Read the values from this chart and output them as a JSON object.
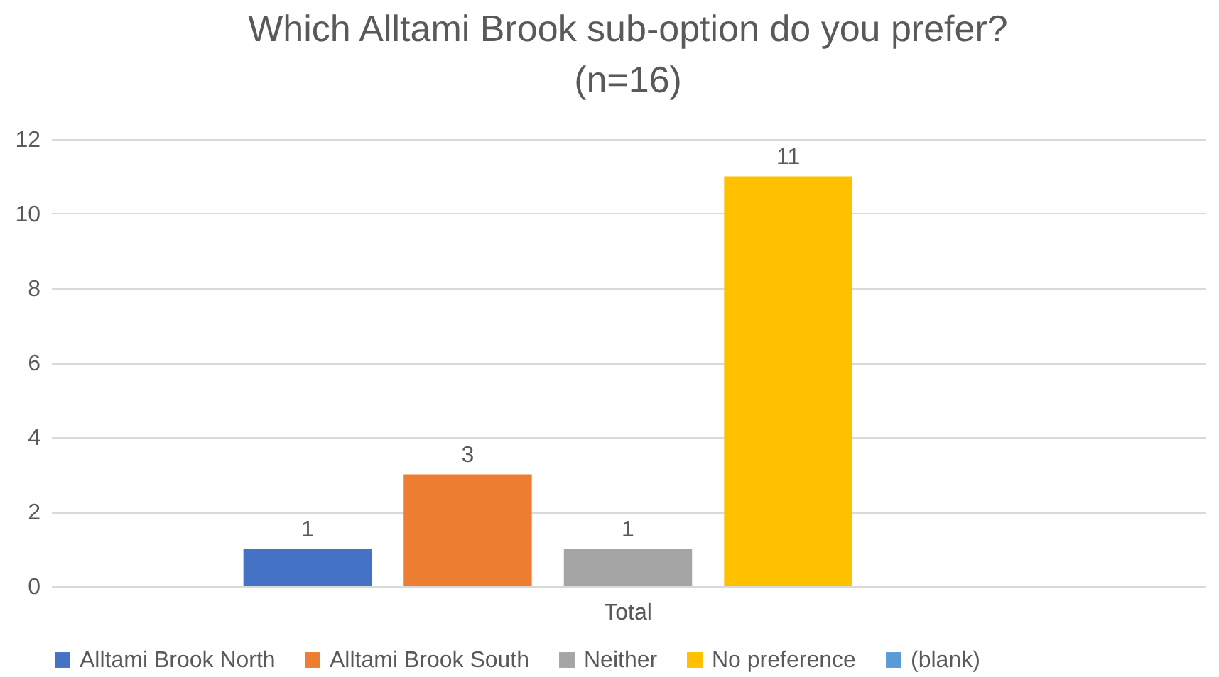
{
  "chart_data": {
    "type": "bar",
    "title": [
      "Which Alltami Brook sub-option do you prefer?",
      "(n=16)"
    ],
    "categories": [
      "Total"
    ],
    "series": [
      {
        "name": "Alltami Brook North",
        "color": "#4472c4",
        "values": [
          1
        ]
      },
      {
        "name": "Alltami Brook South",
        "color": "#ed7d31",
        "values": [
          3
        ]
      },
      {
        "name": "Neither",
        "color": "#a5a5a5",
        "values": [
          1
        ]
      },
      {
        "name": "No preference",
        "color": "#ffc000",
        "values": [
          11
        ]
      },
      {
        "name": "(blank)",
        "color": "#5b9bd5",
        "values": [
          null
        ]
      }
    ],
    "ylim": [
      0,
      12
    ],
    "yticks": [
      0,
      2,
      4,
      6,
      8,
      10,
      12
    ],
    "grid": "y",
    "legend": "bottom",
    "data_labels": true
  }
}
